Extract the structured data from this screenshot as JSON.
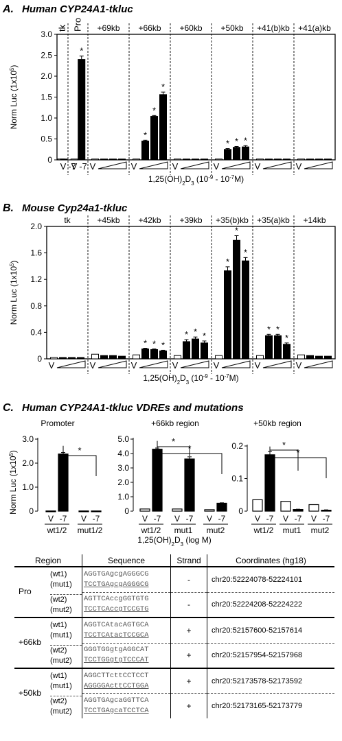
{
  "chart_data": [
    {
      "type": "bar",
      "panel_letter": "A.",
      "title": "Human CYP24A1-tkluc",
      "ylabel": "Norm Luc (1x10",
      "ylabel_sup": "5",
      "ylabel_end": ")",
      "ylim": [
        0,
        3.0
      ],
      "yticks": [
        "0",
        "0.5",
        "1.0",
        "1.5",
        "2.0",
        "2.5",
        "3.0"
      ],
      "xlabel": "1,25(OH)",
      "xlabel_sub": "2",
      "xlabel_mid": "D",
      "xlabel_sub2": "3",
      "xlabel_range": " (10",
      "xlabel_exp1": "-9",
      "xlabel_range2": " - 10",
      "xlabel_exp2": "-7",
      "xlabel_end": "M)",
      "groups": [
        {
          "label": "tk",
          "values": [
            0.02,
            0.02
          ],
          "fills": [
            "white",
            "black"
          ],
          "sig": [
            false,
            false
          ],
          "xlabels": [
            "V",
            "-7"
          ]
        },
        {
          "label": "Pro",
          "values": [
            0.02,
            2.4
          ],
          "fills": [
            "white",
            "black"
          ],
          "sig": [
            false,
            true
          ],
          "xlabels": [],
          "err": [
            0,
            0.08
          ]
        },
        {
          "label": "+69kb",
          "values": [
            0.02,
            0.02,
            0.02,
            0.02
          ],
          "fills": [
            "white",
            "black",
            "black",
            "black"
          ],
          "sig": [
            false,
            false,
            false,
            false
          ]
        },
        {
          "label": "+66kb",
          "values": [
            0.02,
            0.45,
            1.04,
            1.56
          ],
          "fills": [
            "white",
            "black",
            "black",
            "black"
          ],
          "sig": [
            false,
            true,
            true,
            true
          ],
          "err": [
            0,
            0.02,
            0.02,
            0.06
          ]
        },
        {
          "label": "+60kb",
          "values": [
            0.02,
            0.02,
            0.02,
            0.02
          ],
          "fills": [
            "white",
            "black",
            "black",
            "black"
          ],
          "sig": [
            false,
            false,
            false,
            false
          ]
        },
        {
          "label": "+50kb",
          "values": [
            0.02,
            0.25,
            0.3,
            0.31
          ],
          "fills": [
            "white",
            "black",
            "black",
            "black"
          ],
          "sig": [
            false,
            true,
            true,
            true
          ],
          "err": [
            0,
            0.02,
            0.02,
            0.03
          ]
        },
        {
          "label": "+41(b)kb",
          "values": [
            0.02,
            0.02,
            0.02,
            0.02
          ],
          "fills": [
            "white",
            "black",
            "black",
            "black"
          ],
          "sig": [
            false,
            false,
            false,
            false
          ]
        },
        {
          "label": "+41(a)kb",
          "values": [
            0.02,
            0.02,
            0.02,
            0.02
          ],
          "fills": [
            "white",
            "black",
            "black",
            "black"
          ],
          "sig": [
            false,
            false,
            false,
            false
          ]
        }
      ]
    },
    {
      "type": "bar",
      "panel_letter": "B.",
      "title": "Mouse Cyp24a1-tkluc",
      "ylabel": "Norm Luc (1x10",
      "ylabel_sup": "5",
      "ylabel_end": ")",
      "ylim": [
        0,
        2.0
      ],
      "yticks": [
        "0",
        "0.4",
        "0.8",
        "1.2",
        "1.6",
        "2.0"
      ],
      "groups": [
        {
          "label": "tk",
          "values": [
            0.02,
            0.02,
            0.02,
            0.02
          ],
          "fills": [
            "white",
            "black",
            "black",
            "black"
          ],
          "sig": [
            false,
            false,
            false,
            false
          ]
        },
        {
          "label": "+45kb",
          "values": [
            0.07,
            0.05,
            0.05,
            0.04
          ],
          "fills": [
            "white",
            "black",
            "black",
            "black"
          ],
          "sig": [
            false,
            false,
            false,
            false
          ]
        },
        {
          "label": "+42kb",
          "values": [
            0.06,
            0.15,
            0.14,
            0.12
          ],
          "fills": [
            "white",
            "black",
            "black",
            "black"
          ],
          "sig": [
            false,
            true,
            true,
            true
          ],
          "err": [
            0,
            0.01,
            0.01,
            0.01
          ]
        },
        {
          "label": "+39kb",
          "values": [
            0.05,
            0.26,
            0.3,
            0.24
          ],
          "fills": [
            "white",
            "black",
            "black",
            "black"
          ],
          "sig": [
            false,
            true,
            true,
            true
          ],
          "err": [
            0,
            0.03,
            0.03,
            0.03
          ]
        },
        {
          "label": "+35(b)kb",
          "values": [
            0.05,
            1.33,
            1.79,
            1.48
          ],
          "fills": [
            "white",
            "black",
            "black",
            "black"
          ],
          "sig": [
            false,
            true,
            true,
            true
          ],
          "err": [
            0,
            0.06,
            0.07,
            0.05
          ]
        },
        {
          "label": "+35(a)kb",
          "values": [
            0.05,
            0.35,
            0.35,
            0.22
          ],
          "fills": [
            "white",
            "black",
            "black",
            "black"
          ],
          "sig": [
            false,
            true,
            true,
            true
          ],
          "err": [
            0,
            0.02,
            0.02,
            0.02
          ]
        },
        {
          "label": "+14kb",
          "values": [
            0.06,
            0.05,
            0.04,
            0.04
          ],
          "fills": [
            "white",
            "black",
            "black",
            "black"
          ],
          "sig": [
            false,
            false,
            false,
            false
          ]
        }
      ]
    },
    {
      "type": "bar",
      "panel_letter": "C.",
      "title": "Human CYP24A1-tkluc VDREs and mutations",
      "subtitle": "Promoter",
      "ylabel": "Norm Luc (1x10",
      "ylabel_sup": "5",
      "ylabel_end": ")",
      "ylim": [
        0,
        3.0
      ],
      "yticks": [
        "0",
        "1.0",
        "2.0",
        "3.0"
      ],
      "groups": [
        {
          "label": "wt1/2",
          "xlabels": [
            "V",
            "-7"
          ],
          "values": [
            0.01,
            2.38
          ],
          "fills": [
            "white",
            "black"
          ],
          "err": [
            0,
            0.06
          ]
        },
        {
          "label": "mut1/2",
          "xlabels": [
            "V",
            "-7"
          ],
          "values": [
            0.01,
            0.01
          ],
          "fills": [
            "white",
            "black"
          ],
          "err": [
            0,
            0
          ]
        }
      ],
      "comparisons": [
        {
          "from": [
            0,
            1
          ],
          "to": [
            1,
            1
          ],
          "label": "*"
        }
      ]
    },
    {
      "type": "bar",
      "subtitle": "+66kb region",
      "ylim": [
        0,
        5.0
      ],
      "yticks": [
        "0",
        "1.0",
        "2.0",
        "3.0",
        "4.0",
        "5.0"
      ],
      "xlabel": "1,25(OH)",
      "xlabel_sub": "2",
      "xlabel_mid": "D",
      "xlabel_sub2": "3",
      "xlabel_end": " (log M)",
      "groups": [
        {
          "label": "wt1/2",
          "xlabels": [
            "V",
            "-7"
          ],
          "values": [
            0.15,
            4.3
          ],
          "fills": [
            "white",
            "black"
          ],
          "err": [
            0,
            0.08
          ]
        },
        {
          "label": "mut1",
          "xlabels": [
            "V",
            "-7"
          ],
          "values": [
            0.15,
            3.62
          ],
          "fills": [
            "white",
            "black"
          ],
          "err": [
            0,
            0.15
          ]
        },
        {
          "label": "mut2",
          "xlabels": [
            "V",
            "-7"
          ],
          "values": [
            0.1,
            0.55
          ],
          "fills": [
            "white",
            "black"
          ],
          "err": [
            0,
            0.03
          ]
        }
      ],
      "comparisons": [
        {
          "from": [
            0,
            1
          ],
          "to": [
            1,
            1
          ],
          "label": "*"
        },
        {
          "from": [
            0,
            1
          ],
          "to": [
            2,
            1
          ],
          "label": "*"
        }
      ]
    },
    {
      "type": "bar",
      "subtitle": "+50kb region",
      "ylim": [
        0,
        0.2
      ],
      "yticks": [
        "0",
        "0.1",
        "0.2"
      ],
      "groups": [
        {
          "label": "wt1/2",
          "xlabels": [
            "V",
            "-7"
          ],
          "values": [
            0.035,
            0.173
          ],
          "fills": [
            "white",
            "black"
          ],
          "err": [
            0,
            0.01
          ]
        },
        {
          "label": "mut1",
          "xlabels": [
            "V",
            "-7"
          ],
          "values": [
            0.03,
            0.005
          ],
          "fills": [
            "white",
            "black"
          ],
          "err": [
            0,
            0.001
          ]
        },
        {
          "label": "mut2",
          "xlabels": [
            "V",
            "-7"
          ],
          "values": [
            0.02,
            0.003
          ],
          "fills": [
            "white",
            "black"
          ],
          "err": [
            0,
            0.001
          ]
        }
      ],
      "comparisons": [
        {
          "from": [
            0,
            1
          ],
          "to": [
            1,
            1
          ],
          "label": "*"
        },
        {
          "from": [
            0,
            1
          ],
          "to": [
            2,
            1
          ],
          "label": "*"
        }
      ]
    }
  ],
  "table": {
    "headers": [
      "Region",
      "Sequence",
      "Strand",
      "Coordinates (hg18)"
    ],
    "groups": [
      {
        "region": "Pro",
        "pairs": [
          {
            "labels": [
              "(wt1)",
              "(mut1)"
            ],
            "seqs": [
              "AGGTGAgcgAGGGCG",
              "TCCTGAgcgAGGGCG"
            ],
            "strand": "-",
            "coord": "chr20:52224078-52224101"
          },
          {
            "labels": [
              "(wt2)",
              "(mut2)"
            ],
            "seqs": [
              "AGTTCAccgGGTGTG",
              "TCCTCAccgTCCGTG"
            ],
            "strand": "-",
            "coord": "chr20:52224208-52224222"
          }
        ]
      },
      {
        "region": "+66kb",
        "pairs": [
          {
            "labels": [
              "(wt1)",
              "(mut1)"
            ],
            "seqs": [
              "AGGTCAtacAGTGCA",
              "TCCTCAtacTCCGCA"
            ],
            "strand": "+",
            "coord": "chr20:52157600-52157614"
          },
          {
            "labels": [
              "(wt2)",
              "(mut2)"
            ],
            "seqs": [
              "GGGTGGgtgAGGCAT",
              "TCCTGGgtgTCCCAT"
            ],
            "strand": "+",
            "coord": "chr20:52157954-52157968"
          }
        ]
      },
      {
        "region": "+50kb",
        "pairs": [
          {
            "labels": [
              "(wt1)",
              "(mut1)"
            ],
            "seqs": [
              "AGGCTTcttCCTCCT",
              "AGGGGActtCCTGGA"
            ],
            "strand": "+",
            "coord": "chr20:52173578-52173592"
          },
          {
            "labels": [
              "(wt2)",
              "(mut2)"
            ],
            "seqs": [
              "AGGTGAgcaGGTTCA",
              "TCCTGAgcaTCCTCA"
            ],
            "strand": "+",
            "coord": "chr20:52173165-52173779"
          }
        ]
      }
    ]
  }
}
